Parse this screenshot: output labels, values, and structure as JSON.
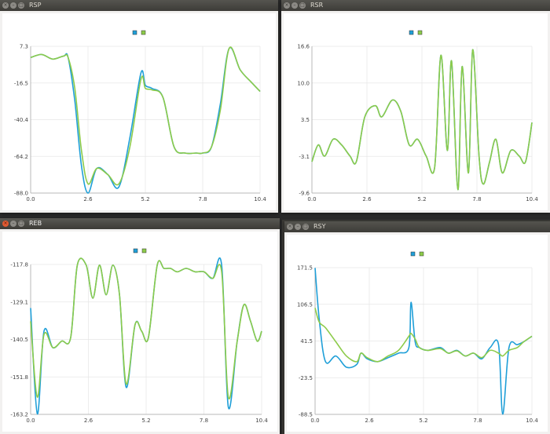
{
  "windows": [
    {
      "id": "rsp",
      "title": "RSP",
      "active": false,
      "chart_data": {
        "type": "line",
        "x": [
          0.0,
          0.5,
          1.0,
          1.5,
          1.7,
          2.0,
          2.3,
          2.6,
          3.0,
          3.5,
          4.0,
          4.5,
          5.0,
          5.2,
          5.5,
          6.0,
          6.5,
          7.0,
          7.5,
          7.8,
          8.2,
          8.6,
          9.0,
          9.5,
          10.0,
          10.4
        ],
        "series": [
          {
            "name": "",
            "color": "#1f9fd8",
            "values": [
              0,
              2,
              -1,
              1,
              0,
              -28,
              -70,
              -88,
              -72,
              -76,
              -84,
              -52,
              -10,
              -18,
              -20,
              -26,
              -58,
              -62,
              -62,
              -62,
              -58,
              -30,
              6,
              -8,
              -16,
              -22
            ]
          },
          {
            "name": "",
            "color": "#8ccb4a",
            "values": [
              0,
              2,
              -1,
              1,
              0,
              -20,
              -60,
              -82,
              -72,
              -76,
              -82,
              -58,
              -14,
              -20,
              -21,
              -26,
              -58,
              -62,
              -62,
              -62,
              -58,
              -34,
              6,
              -8,
              -16,
              -22
            ]
          }
        ],
        "xticks": [
          "0.0",
          "2.6",
          "5.2",
          "7.8",
          "10.4"
        ],
        "yticks": [
          "7.3",
          "-16.5",
          "-40.4",
          "-64.2",
          "-88.0"
        ],
        "xlim": [
          0,
          10.4
        ],
        "ylim": [
          -88.0,
          7.3
        ],
        "grid": true,
        "legend": "top-center"
      }
    },
    {
      "id": "rsr",
      "title": "RSR",
      "active": false,
      "chart_data": {
        "type": "line",
        "x": [
          0.0,
          0.3,
          0.6,
          1.0,
          1.4,
          1.8,
          2.1,
          2.5,
          3.0,
          3.3,
          3.8,
          4.2,
          4.6,
          5.0,
          5.4,
          5.8,
          6.1,
          6.4,
          6.6,
          6.9,
          7.1,
          7.4,
          7.6,
          7.9,
          8.1,
          8.4,
          8.7,
          9.0,
          9.4,
          9.8,
          10.1,
          10.4
        ],
        "series": [
          {
            "name": "",
            "color": "#1f9fd8",
            "values": [
              -4,
              -1,
              -3,
              0,
              -1,
              -3,
              -4,
              4,
              6,
              4,
              7,
              5,
              -1,
              0,
              -3,
              -5,
              15,
              -2,
              14,
              -9,
              13,
              -6,
              16,
              -3,
              -8,
              -4,
              0,
              -6,
              -2,
              -3,
              -4,
              3
            ]
          },
          {
            "name": "",
            "color": "#8ccb4a",
            "values": [
              -4,
              -1,
              -3,
              0,
              -1,
              -3,
              -4,
              4,
              6,
              4,
              7,
              5,
              -1,
              0,
              -3,
              -5,
              15,
              -2,
              14,
              -9,
              13,
              -6,
              16,
              -3,
              -8,
              -4,
              0,
              -6,
              -2,
              -3,
              -4,
              3
            ]
          }
        ],
        "xticks": [
          "0.0",
          "2.6",
          "5.2",
          "7.8",
          "10.4"
        ],
        "yticks": [
          "16.6",
          "10.0",
          "3.5",
          "-3.1",
          "-9.6"
        ],
        "xlim": [
          0,
          10.4
        ],
        "ylim": [
          -9.6,
          16.6
        ],
        "grid": true,
        "legend": "top-center"
      }
    },
    {
      "id": "reb",
      "title": "REB",
      "active": true,
      "chart_data": {
        "type": "line",
        "x": [
          0.0,
          0.3,
          0.6,
          1.0,
          1.4,
          1.8,
          2.1,
          2.5,
          2.8,
          3.1,
          3.4,
          3.7,
          4.0,
          4.3,
          4.7,
          5.0,
          5.3,
          5.7,
          6.0,
          6.3,
          6.6,
          7.0,
          7.4,
          7.8,
          8.2,
          8.6,
          8.9,
          9.3,
          9.6,
          9.9,
          10.2,
          10.4
        ],
        "series": [
          {
            "name": "",
            "color": "#1f9fd8",
            "values": [
              -131,
              -163,
              -138,
              -143,
              -141,
              -140,
              -118,
              -118,
              -128,
              -118,
              -127,
              -118,
              -127,
              -155,
              -136,
              -138,
              -140,
              -118,
              -119,
              -119,
              -120,
              -119,
              -120,
              -120,
              -122,
              -118,
              -161,
              -141,
              -130,
              -135,
              -141,
              -138
            ]
          },
          {
            "name": "",
            "color": "#8ccb4a",
            "values": [
              -135,
              -158,
              -139,
              -143,
              -141,
              -140,
              -118,
              -118,
              -128,
              -118,
              -127,
              -118,
              -127,
              -154,
              -136,
              -138,
              -140,
              -118,
              -119,
              -119,
              -120,
              -119,
              -120,
              -120,
              -122,
              -120,
              -158,
              -141,
              -130,
              -135,
              -141,
              -138
            ]
          }
        ],
        "xticks": [
          "0.0",
          "2.6",
          "5.2",
          "7.8",
          "10.4"
        ],
        "yticks": [
          "-117.8",
          "-129.1",
          "-140.5",
          "-151.8",
          "-163.2"
        ],
        "xlim": [
          0,
          10.4
        ],
        "ylim": [
          -163.2,
          -117.8
        ],
        "grid": true,
        "legend": "top-center"
      }
    },
    {
      "id": "rsy",
      "title": "RSY",
      "active": false,
      "chart_data": {
        "type": "line",
        "x": [
          0.0,
          0.2,
          0.5,
          1.0,
          1.5,
          2.0,
          2.2,
          2.5,
          3.0,
          3.5,
          4.0,
          4.5,
          4.6,
          4.8,
          5.0,
          5.4,
          6.0,
          6.4,
          6.8,
          7.2,
          7.6,
          8.0,
          8.4,
          8.8,
          9.0,
          9.3,
          9.7,
          10.0,
          10.4
        ],
        "series": [
          {
            "name": "",
            "color": "#1f9fd8",
            "values": [
              171,
              80,
              5,
              15,
              -5,
              0,
              20,
              10,
              5,
              12,
              20,
              30,
              110,
              40,
              30,
              25,
              30,
              20,
              25,
              15,
              20,
              10,
              30,
              35,
              -88,
              30,
              35,
              40,
              50
            ]
          },
          {
            "name": "",
            "color": "#8ccb4a",
            "values": [
              100,
              75,
              65,
              40,
              15,
              5,
              20,
              12,
              5,
              15,
              25,
              50,
              55,
              45,
              30,
              25,
              28,
              20,
              24,
              15,
              20,
              12,
              25,
              20,
              15,
              25,
              30,
              40,
              50
            ]
          }
        ],
        "xticks": [
          "0.0",
          "2.6",
          "5.2",
          "7.8",
          "10.4"
        ],
        "yticks": [
          "171.5",
          "106.5",
          "41.5",
          "-23.5",
          "-88.5"
        ],
        "xlim": [
          0,
          10.4
        ],
        "ylim": [
          -88.5,
          171.5
        ],
        "grid": true,
        "legend": "top-center"
      }
    }
  ]
}
